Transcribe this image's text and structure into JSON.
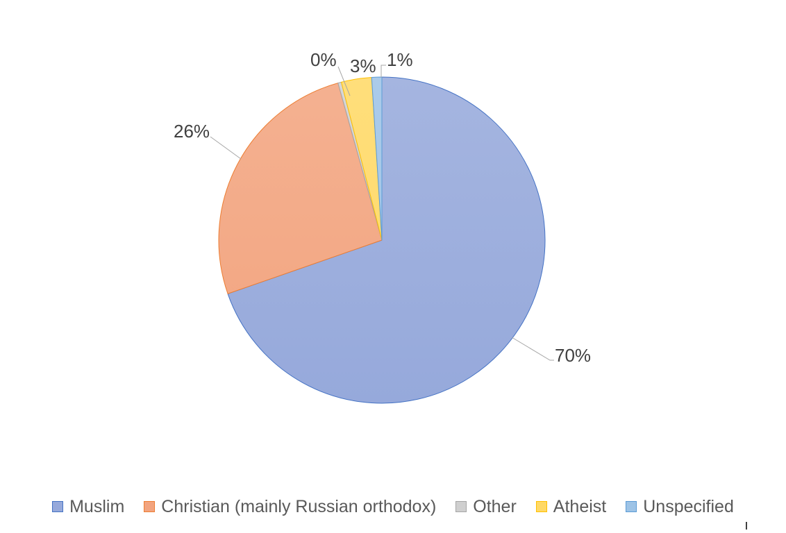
{
  "chart_data": {
    "type": "pie",
    "title": "",
    "categories": [
      "Muslim",
      "Christian (mainly Russian orthodox)",
      "Other",
      "Atheist",
      "Unspecified"
    ],
    "values": [
      70,
      26,
      0,
      3,
      1
    ],
    "slices": [
      {
        "label": "Muslim",
        "value_pct": 70,
        "display": "70%",
        "fill": "#96A9DB",
        "border": "#4472C4",
        "sweep_deg": 250.8
      },
      {
        "label": "Christian (mainly Russian orthodox)",
        "value_pct": 26,
        "display": "26%",
        "fill": "#F2A47F",
        "border": "#ED7D31",
        "sweep_deg": 93.6
      },
      {
        "label": "Other",
        "value_pct": 0,
        "display": "0%",
        "fill": "#CFCFCF",
        "border": "#A5A5A5",
        "sweep_deg": 1.2
      },
      {
        "label": "Atheist",
        "value_pct": 3,
        "display": "3%",
        "fill": "#FFD966",
        "border": "#FFC000",
        "sweep_deg": 10.8
      },
      {
        "label": "Unspecified",
        "value_pct": 1,
        "display": "1%",
        "fill": "#9DC3E6",
        "border": "#5B9BD5",
        "sweep_deg": 3.6
      }
    ],
    "start_at": "12-o-clock",
    "direction": "clockwise",
    "legend_position": "bottom",
    "grid": "off",
    "colors": {
      "background": "#FFFFFF",
      "data_label_color": "#404040",
      "leader_line_color": "#A6A6A6",
      "legend_text_color": "#595959"
    }
  }
}
